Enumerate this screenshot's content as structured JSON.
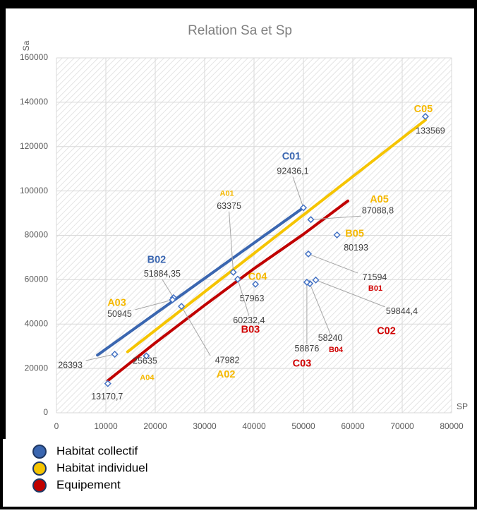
{
  "chart_data": {
    "type": "scatter",
    "title": "Relation Sa et Sp",
    "x_label": "SP",
    "y_label": "Sa",
    "xlim": [
      0,
      80000
    ],
    "xticks": [
      0,
      10000,
      20000,
      30000,
      40000,
      50000,
      60000,
      70000,
      80000
    ],
    "ylim": [
      0,
      160000
    ],
    "yticks": [
      0,
      20000,
      40000,
      60000,
      80000,
      100000,
      120000,
      140000,
      160000
    ],
    "grid": true,
    "marker_color": "#4472c4",
    "points": {
      "x": [
        74700,
        50000,
        51500,
        56800,
        35800,
        23700,
        23500,
        25300,
        40300,
        36700,
        11800,
        18200,
        10400,
        51000,
        52500,
        51300,
        50700
      ],
      "values": [
        133569,
        92436.1,
        87088.8,
        80193,
        63375,
        51884.35,
        50945,
        47982,
        57963,
        60232.4,
        26393,
        25635,
        13170.7,
        71594,
        59844.4,
        58240,
        58876
      ],
      "value_labels": [
        "133569",
        "92436,1",
        "87088,8",
        "80193",
        "63375",
        "51884,35",
        "50945",
        "47982",
        "57963",
        "60232,4",
        "26393",
        "25635",
        "13170,7",
        "71594",
        "59844,4",
        "58240",
        "58876"
      ],
      "codes": [
        "C05",
        "C01",
        "A05",
        "B05",
        "A01",
        "B02",
        "A03",
        "A02",
        "C04",
        "B03",
        null,
        "A04",
        null,
        "B01",
        "C02",
        "B04",
        "C03"
      ],
      "code_colors": [
        "#f5b800",
        "#3a66b0",
        "#f5b800",
        "#f5b800",
        "#f5b800",
        "#3a66b0",
        "#f5b800",
        "#f5b800",
        "#f5b800",
        "#d00000",
        null,
        "#f5b800",
        null,
        "#d00000",
        "#d00000",
        "#d00000",
        "#d00000"
      ]
    },
    "series": [
      {
        "name": "Habitat collectif",
        "color": "#3a66b0",
        "x": [
          8300,
          50000
        ],
        "values": [
          26000,
          92500
        ]
      },
      {
        "name": "Habitat individuel",
        "color": "#f5c400",
        "x": [
          14400,
          74700
        ],
        "values": [
          27500,
          132000
        ]
      },
      {
        "name": "Equipement",
        "color": "#c00000",
        "x": [
          10400,
          20000,
          30000,
          40000,
          50000,
          59000
        ],
        "values": [
          14500,
          31500,
          48500,
          65000,
          80500,
          95500
        ]
      }
    ]
  }
}
